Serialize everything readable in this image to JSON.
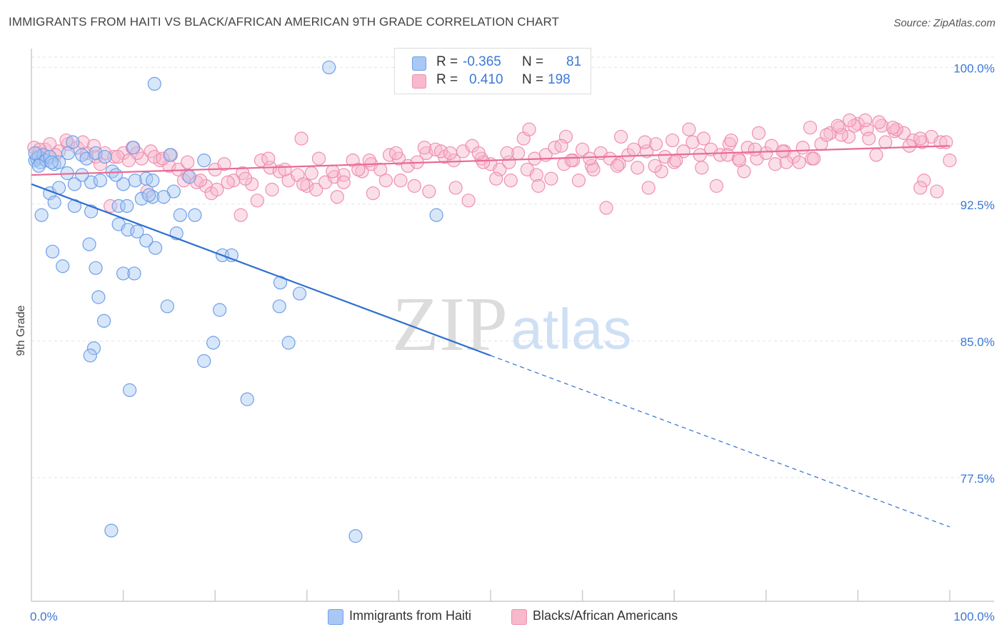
{
  "title": "IMMIGRANTS FROM HAITI VS BLACK/AFRICAN AMERICAN 9TH GRADE CORRELATION CHART",
  "source": "Source: ZipAtlas.com",
  "watermark": {
    "zip": "ZIP",
    "atlas": "atlas"
  },
  "stats": {
    "r_label": "R =",
    "n_label": "N =",
    "rows": [
      {
        "r": "-0.365",
        "n": "81",
        "color": "#a9c8f5"
      },
      {
        "r": "0.410",
        "n": "198",
        "color": "#f7b9cc"
      }
    ]
  },
  "legend": {
    "items": [
      {
        "label": "Immigrants from Haiti",
        "color": "#a9c8f5"
      },
      {
        "label": "Blacks/African Americans",
        "color": "#f7b9cc"
      }
    ]
  },
  "chart_data": {
    "type": "scatter",
    "title": "IMMIGRANTS FROM HAITI VS BLACK/AFRICAN AMERICAN 9TH GRADE CORRELATION CHART",
    "xlabel": "",
    "ylabel": "9th Grade",
    "xlim": [
      0,
      100
    ],
    "ylim": [
      70.8,
      100.8
    ],
    "x_ticks": [
      "0.0%",
      "100.0%"
    ],
    "y_ticks": [
      {
        "value": 100.0,
        "label": "100.0%"
      },
      {
        "value": 92.5,
        "label": "92.5%"
      },
      {
        "value": 85.0,
        "label": "85.0%"
      },
      {
        "value": 77.5,
        "label": "77.5%"
      }
    ],
    "grid": "horizontal dashed",
    "legend_position": "bottom",
    "colors": {
      "haiti": "#6fa0e6",
      "haiti_line": "#2f6fd0",
      "black": "#ef8fb0",
      "black_line": "#e86a95"
    },
    "series": [
      {
        "name": "Immigrants from Haiti",
        "R": -0.365,
        "N": 81,
        "trend": {
          "x0": 0.0,
          "y0": 93.6,
          "x1": 50.0,
          "y1": 84.2,
          "dash_to_x": 100.0,
          "dash_to_y": 74.8
        },
        "points": [
          [
            0.4,
            94.9
          ],
          [
            0.6,
            95.0
          ],
          [
            0.8,
            95.1
          ],
          [
            1.0,
            94.8
          ],
          [
            1.3,
            95.2
          ],
          [
            1.6,
            94.9
          ],
          [
            2.0,
            95.1
          ],
          [
            2.5,
            94.7
          ],
          [
            3.0,
            94.8
          ],
          [
            4.0,
            95.3
          ],
          [
            4.5,
            95.9
          ],
          [
            5.5,
            95.2
          ],
          [
            6.0,
            95.0
          ],
          [
            7.0,
            95.3
          ],
          [
            8.0,
            95.1
          ],
          [
            11.1,
            95.6
          ],
          [
            15.1,
            95.2
          ],
          [
            18.8,
            94.9
          ],
          [
            2.0,
            93.1
          ],
          [
            3.0,
            93.4
          ],
          [
            3.9,
            94.2
          ],
          [
            4.7,
            93.6
          ],
          [
            6.5,
            93.7
          ],
          [
            7.5,
            93.8
          ],
          [
            8.8,
            94.3
          ],
          [
            10.0,
            93.6
          ],
          [
            11.3,
            93.8
          ],
          [
            12.5,
            93.9
          ],
          [
            13.2,
            93.8
          ],
          [
            15.5,
            93.2
          ],
          [
            2.5,
            92.6
          ],
          [
            4.7,
            92.4
          ],
          [
            6.5,
            92.1
          ],
          [
            9.5,
            92.4
          ],
          [
            10.4,
            92.4
          ],
          [
            12.0,
            92.8
          ],
          [
            13.2,
            92.9
          ],
          [
            16.2,
            91.9
          ],
          [
            17.8,
            91.9
          ],
          [
            1.1,
            91.9
          ],
          [
            9.5,
            91.4
          ],
          [
            10.5,
            91.1
          ],
          [
            11.5,
            91.0
          ],
          [
            12.5,
            90.5
          ],
          [
            13.5,
            90.1
          ],
          [
            15.8,
            90.9
          ],
          [
            6.3,
            90.3
          ],
          [
            2.3,
            89.9
          ],
          [
            3.4,
            89.1
          ],
          [
            7.0,
            89.0
          ],
          [
            10.0,
            88.7
          ],
          [
            11.2,
            88.7
          ],
          [
            20.8,
            89.7
          ],
          [
            21.8,
            89.7
          ],
          [
            27.1,
            88.2
          ],
          [
            29.2,
            87.6
          ],
          [
            7.3,
            87.4
          ],
          [
            14.8,
            86.9
          ],
          [
            20.5,
            86.7
          ],
          [
            27.0,
            86.9
          ],
          [
            7.9,
            86.1
          ],
          [
            6.8,
            84.6
          ],
          [
            6.4,
            84.2
          ],
          [
            19.8,
            84.9
          ],
          [
            28.0,
            84.9
          ],
          [
            18.8,
            83.9
          ],
          [
            10.7,
            82.3
          ],
          [
            23.5,
            81.8
          ],
          [
            8.7,
            74.6
          ],
          [
            35.3,
            74.3
          ],
          [
            13.4,
            99.1
          ],
          [
            32.4,
            100.0
          ],
          [
            44.1,
            91.9
          ],
          [
            0.4,
            95.3
          ],
          [
            0.8,
            94.6
          ],
          [
            2.2,
            94.8
          ],
          [
            5.5,
            94.1
          ],
          [
            9.2,
            94.1
          ],
          [
            12.8,
            93.0
          ],
          [
            17.2,
            94.0
          ],
          [
            14.4,
            92.9
          ]
        ]
      },
      {
        "name": "Blacks/African Americans",
        "R": 0.41,
        "N": 198,
        "trend": {
          "x0": 0.0,
          "y0": 94.1,
          "x1": 100.0,
          "y1": 95.7
        },
        "points": [
          [
            0.3,
            95.6
          ],
          [
            0.8,
            95.3
          ],
          [
            1.5,
            95.5
          ],
          [
            2.0,
            95.8
          ],
          [
            3.0,
            95.4
          ],
          [
            4.0,
            95.8
          ],
          [
            5.0,
            95.6
          ],
          [
            6.0,
            95.3
          ],
          [
            7.0,
            95.1
          ],
          [
            8.0,
            95.3
          ],
          [
            9.0,
            95.1
          ],
          [
            10.0,
            95.3
          ],
          [
            11.0,
            95.6
          ],
          [
            12.0,
            95.0
          ],
          [
            13.0,
            95.4
          ],
          [
            14.0,
            94.9
          ],
          [
            15.0,
            94.6
          ],
          [
            16.0,
            94.4
          ],
          [
            17.0,
            94.1
          ],
          [
            18.0,
            93.7
          ],
          [
            19.0,
            93.5
          ],
          [
            20.0,
            94.4
          ],
          [
            21.0,
            94.7
          ],
          [
            22.0,
            93.8
          ],
          [
            23.0,
            94.2
          ],
          [
            24.0,
            93.6
          ],
          [
            25.0,
            94.9
          ],
          [
            26.0,
            94.5
          ],
          [
            27.0,
            94.3
          ],
          [
            28.0,
            93.8
          ],
          [
            29.0,
            94.1
          ],
          [
            30.0,
            93.5
          ],
          [
            31.0,
            93.3
          ],
          [
            32.0,
            93.7
          ],
          [
            33.0,
            94.0
          ],
          [
            34.0,
            94.1
          ],
          [
            35.0,
            94.9
          ],
          [
            36.0,
            94.3
          ],
          [
            37.0,
            94.7
          ],
          [
            38.0,
            94.4
          ],
          [
            39.0,
            95.2
          ],
          [
            40.0,
            95.0
          ],
          [
            41.0,
            94.6
          ],
          [
            42.0,
            94.8
          ],
          [
            43.0,
            95.3
          ],
          [
            44.0,
            95.5
          ],
          [
            45.0,
            95.1
          ],
          [
            46.0,
            94.9
          ],
          [
            47.0,
            95.4
          ],
          [
            48.0,
            95.7
          ],
          [
            49.0,
            95.0
          ],
          [
            50.0,
            94.7
          ],
          [
            51.0,
            94.4
          ],
          [
            52.0,
            94.8
          ],
          [
            53.0,
            95.3
          ],
          [
            54.0,
            94.4
          ],
          [
            55.0,
            94.1
          ],
          [
            56.0,
            95.2
          ],
          [
            57.0,
            95.6
          ],
          [
            58.0,
            94.7
          ],
          [
            59.0,
            94.9
          ],
          [
            60.0,
            95.5
          ],
          [
            61.0,
            94.6
          ],
          [
            62.0,
            95.3
          ],
          [
            63.0,
            95.0
          ],
          [
            64.0,
            94.7
          ],
          [
            65.0,
            95.2
          ],
          [
            66.0,
            94.5
          ],
          [
            67.0,
            95.4
          ],
          [
            68.0,
            95.8
          ],
          [
            69.0,
            95.1
          ],
          [
            70.0,
            94.8
          ],
          [
            71.0,
            95.4
          ],
          [
            72.0,
            95.9
          ],
          [
            73.0,
            94.5
          ],
          [
            74.0,
            95.5
          ],
          [
            75.0,
            95.2
          ],
          [
            76.0,
            95.8
          ],
          [
            77.0,
            95.0
          ],
          [
            78.0,
            95.6
          ],
          [
            79.0,
            95.0
          ],
          [
            80.0,
            95.3
          ],
          [
            81.0,
            94.7
          ],
          [
            82.0,
            95.4
          ],
          [
            83.0,
            95.1
          ],
          [
            84.0,
            95.6
          ],
          [
            85.0,
            95.0
          ],
          [
            86.0,
            95.8
          ],
          [
            87.0,
            96.4
          ],
          [
            88.0,
            96.7
          ],
          [
            89.0,
            96.2
          ],
          [
            90.0,
            96.9
          ],
          [
            91.0,
            96.6
          ],
          [
            92.0,
            95.2
          ],
          [
            93.0,
            95.9
          ],
          [
            94.0,
            96.5
          ],
          [
            95.0,
            96.4
          ],
          [
            96.0,
            96.0
          ],
          [
            97.0,
            95.9
          ],
          [
            98.0,
            96.2
          ],
          [
            99.0,
            95.9
          ],
          [
            100.0,
            94.9
          ],
          [
            1.2,
            95.0
          ],
          [
            2.6,
            95.2
          ],
          [
            5.6,
            95.9
          ],
          [
            7.5,
            94.7
          ],
          [
            9.4,
            95.1
          ],
          [
            11.5,
            95.3
          ],
          [
            13.4,
            95.1
          ],
          [
            15.2,
            95.2
          ],
          [
            16.6,
            93.8
          ],
          [
            18.4,
            93.8
          ],
          [
            19.6,
            93.1
          ],
          [
            21.4,
            93.7
          ],
          [
            23.3,
            93.9
          ],
          [
            24.6,
            92.7
          ],
          [
            26.2,
            93.3
          ],
          [
            27.6,
            94.4
          ],
          [
            29.6,
            93.6
          ],
          [
            31.3,
            95.0
          ],
          [
            32.8,
            94.3
          ],
          [
            34.0,
            93.7
          ],
          [
            35.6,
            94.4
          ],
          [
            37.2,
            93.1
          ],
          [
            38.6,
            93.8
          ],
          [
            40.2,
            93.8
          ],
          [
            41.7,
            93.5
          ],
          [
            43.3,
            93.2
          ],
          [
            44.6,
            95.4
          ],
          [
            46.2,
            93.4
          ],
          [
            47.6,
            92.7
          ],
          [
            49.2,
            94.8
          ],
          [
            50.6,
            93.9
          ],
          [
            52.2,
            93.8
          ],
          [
            53.6,
            96.1
          ],
          [
            55.2,
            93.5
          ],
          [
            56.6,
            93.9
          ],
          [
            58.2,
            96.2
          ],
          [
            59.6,
            93.8
          ],
          [
            61.2,
            94.4
          ],
          [
            62.6,
            92.3
          ],
          [
            64.2,
            96.2
          ],
          [
            65.6,
            95.5
          ],
          [
            67.2,
            93.4
          ],
          [
            68.6,
            94.3
          ],
          [
            70.2,
            94.9
          ],
          [
            71.6,
            96.6
          ],
          [
            73.2,
            96.1
          ],
          [
            74.6,
            93.5
          ],
          [
            76.2,
            96.0
          ],
          [
            77.6,
            94.3
          ],
          [
            79.2,
            96.4
          ],
          [
            80.6,
            95.7
          ],
          [
            82.2,
            94.8
          ],
          [
            83.6,
            94.8
          ],
          [
            85.2,
            95.0
          ],
          [
            86.6,
            96.3
          ],
          [
            88.2,
            96.3
          ],
          [
            89.6,
            96.8
          ],
          [
            91.2,
            96.1
          ],
          [
            92.6,
            96.8
          ],
          [
            94.2,
            96.6
          ],
          [
            95.6,
            95.7
          ],
          [
            97.2,
            93.8
          ],
          [
            98.6,
            93.2
          ],
          [
            96.8,
            93.4
          ],
          [
            89.1,
            97.1
          ],
          [
            54.2,
            96.6
          ],
          [
            29.4,
            96.1
          ],
          [
            20.2,
            93.3
          ],
          [
            12.6,
            93.2
          ],
          [
            8.6,
            92.4
          ],
          [
            22.8,
            91.9
          ],
          [
            6.8,
            95.7
          ],
          [
            10.6,
            94.9
          ],
          [
            14.3,
            95.0
          ],
          [
            17.0,
            94.8
          ],
          [
            25.8,
            95.0
          ],
          [
            30.5,
            94.2
          ],
          [
            33.3,
            92.9
          ],
          [
            36.8,
            94.9
          ],
          [
            39.7,
            95.3
          ],
          [
            42.8,
            95.6
          ],
          [
            45.6,
            95.3
          ],
          [
            48.7,
            95.3
          ],
          [
            51.8,
            95.3
          ],
          [
            54.8,
            95.0
          ],
          [
            57.7,
            95.7
          ],
          [
            60.8,
            95.0
          ],
          [
            63.8,
            94.6
          ],
          [
            66.8,
            95.9
          ],
          [
            69.8,
            96.0
          ],
          [
            72.8,
            95.2
          ],
          [
            75.8,
            95.2
          ],
          [
            78.8,
            95.5
          ],
          [
            81.8,
            95.4
          ],
          [
            84.8,
            96.7
          ],
          [
            87.8,
            96.8
          ],
          [
            90.8,
            97.1
          ],
          [
            93.8,
            96.7
          ],
          [
            96.8,
            96.1
          ],
          [
            99.6,
            95.9
          ],
          [
            3.8,
            96.0
          ],
          [
            58.8,
            94.9
          ],
          [
            67.9,
            94.6
          ],
          [
            77.1,
            94.9
          ],
          [
            92.3,
            97.0
          ],
          [
            0.9,
            95.5
          ]
        ]
      }
    ]
  }
}
